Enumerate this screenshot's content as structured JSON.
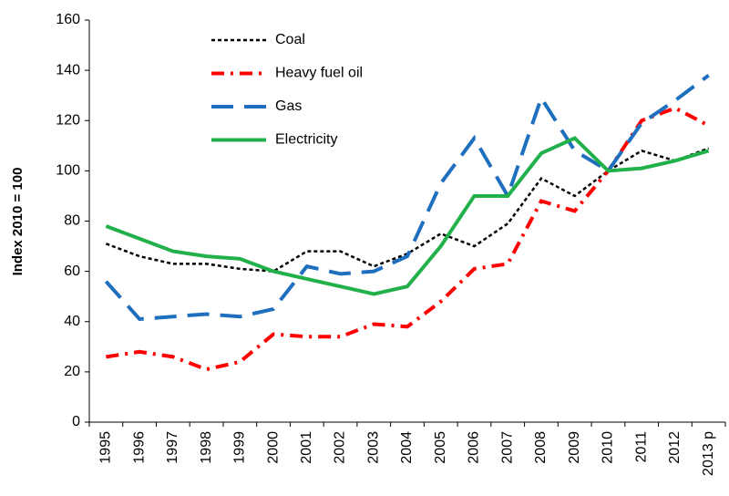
{
  "chart_data": {
    "type": "line",
    "ylabel": "Index 2010 = 100",
    "categories": [
      "1995",
      "1996",
      "1997",
      "1998",
      "1999",
      "2000",
      "2001",
      "2002",
      "2003",
      "2004",
      "2005",
      "2006",
      "2007",
      "2008",
      "2009",
      "2010",
      "2011",
      "2012",
      "2013 p"
    ],
    "series": [
      {
        "name": "Coal",
        "color": "#000000",
        "dash": "4,3",
        "values": [
          71,
          66,
          63,
          63,
          61,
          60,
          68,
          68,
          62,
          67,
          75,
          70,
          79,
          97,
          90,
          100,
          108,
          104,
          109
        ]
      },
      {
        "name": "Heavy fuel oil",
        "color": "#ff0000",
        "dash": "14,7,3,7",
        "values": [
          26,
          28,
          26,
          21,
          24,
          35,
          34,
          34,
          39,
          38,
          48,
          61,
          63,
          88,
          84,
          100,
          120,
          125,
          118
        ]
      },
      {
        "name": "Gas",
        "color": "#1f6fbf",
        "dash": "24,12",
        "values": [
          56,
          41,
          42,
          43,
          42,
          45,
          62,
          59,
          60,
          66,
          95,
          113,
          90,
          129,
          108,
          100,
          119,
          128,
          138
        ]
      },
      {
        "name": "Electricity",
        "color": "#22b04a",
        "dash": "none",
        "values": [
          78,
          73,
          68,
          66,
          65,
          60,
          57,
          54,
          51,
          54,
          70,
          90,
          90,
          107,
          113,
          100,
          101,
          104,
          108
        ]
      }
    ],
    "ylim": [
      0,
      160
    ],
    "yticks": [
      0,
      20,
      40,
      60,
      80,
      100,
      120,
      140,
      160
    ],
    "legend": "upper left"
  }
}
